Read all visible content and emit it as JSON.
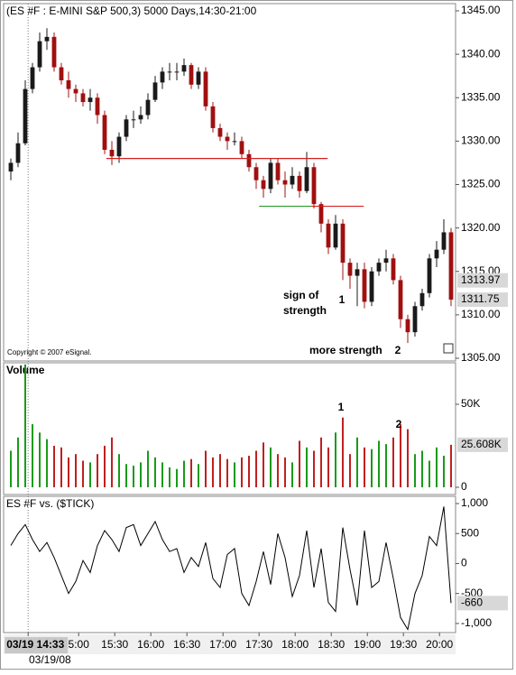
{
  "chart_data": [
    {
      "type": "candlestick",
      "title": "(ES #F : E-MINI S&P 500,3) 5000 Days,14:30-21:00",
      "copyright": "Copyright © 2007 eSignal.",
      "open": [
        1326.5,
        1327.5,
        1329.75,
        1336,
        1338.5,
        1341.5,
        1342,
        1338.5,
        1337,
        1336,
        1335.5,
        1334.5,
        1335,
        1333,
        1329,
        1328.25,
        1330.5,
        1332.5,
        1332.5,
        1333,
        1334.75,
        1336.75,
        1338,
        1338,
        1338,
        1338.75,
        1336.5,
        1338,
        1334,
        1331.5,
        1330.5,
        1330,
        1330,
        1328.5,
        1327,
        1325.5,
        1324.5,
        1327.5,
        1325.5,
        1325,
        1326,
        1324.25,
        1327,
        1322.75,
        1320.5,
        1317.75,
        1320.5,
        1316,
        1314.5,
        1315.25,
        1311.5,
        1315,
        1316,
        1316.5,
        1314,
        1309.5,
        1308,
        1311,
        1312.5,
        1316.5,
        1317.5,
        1319.5
      ],
      "high": [
        1328,
        1331,
        1337,
        1339,
        1342.5,
        1343,
        1342.5,
        1339,
        1338,
        1336.5,
        1336,
        1336,
        1335.5,
        1333.5,
        1330,
        1331,
        1333,
        1333.5,
        1334,
        1335.5,
        1337.5,
        1338.5,
        1339,
        1339,
        1339.5,
        1339,
        1338.5,
        1338.5,
        1334.5,
        1332,
        1331,
        1331,
        1330.5,
        1329,
        1327.5,
        1326,
        1328,
        1328,
        1326.5,
        1327,
        1326.5,
        1328.75,
        1327.5,
        1323,
        1321,
        1321.5,
        1321,
        1316.5,
        1316,
        1316,
        1315.5,
        1316.5,
        1317.5,
        1317,
        1314.5,
        1310,
        1311.5,
        1313,
        1317,
        1318.5,
        1321,
        1320
      ],
      "low": [
        1325.5,
        1327,
        1329.5,
        1335.5,
        1338,
        1340.5,
        1338,
        1336.5,
        1335,
        1334.5,
        1334,
        1333.5,
        1332,
        1328.5,
        1327.25,
        1327.5,
        1330,
        1331.5,
        1332,
        1332.5,
        1334.5,
        1336,
        1337,
        1337,
        1337.5,
        1336,
        1336,
        1333.5,
        1331,
        1330,
        1329,
        1329.5,
        1328,
        1326.5,
        1324.5,
        1323.5,
        1324,
        1325,
        1323.5,
        1324.5,
        1323.5,
        1324,
        1322.25,
        1319.5,
        1317,
        1317.5,
        1314,
        1313,
        1311,
        1310.75,
        1311,
        1314.5,
        1315,
        1313.5,
        1308.5,
        1306.75,
        1307.5,
        1310.5,
        1312,
        1315.5,
        1317,
        1311
      ],
      "close": [
        1327.5,
        1329.75,
        1336,
        1338.5,
        1341.5,
        1342,
        1338.5,
        1337,
        1336,
        1335.5,
        1334.5,
        1335,
        1333,
        1329,
        1328.25,
        1330.5,
        1332.5,
        1332.5,
        1333,
        1334.75,
        1336.75,
        1338,
        1338,
        1338,
        1338.75,
        1336.5,
        1338,
        1334,
        1331.5,
        1330.5,
        1330,
        1330,
        1328.5,
        1327,
        1325.5,
        1324.5,
        1327.5,
        1325.5,
        1325,
        1326,
        1324.25,
        1327,
        1322.75,
        1320.5,
        1317.75,
        1320.5,
        1316,
        1314.5,
        1315.25,
        1311.5,
        1315,
        1316,
        1316.5,
        1314,
        1309.5,
        1308,
        1311,
        1312.5,
        1316.5,
        1317.5,
        1319.5,
        1311.75
      ],
      "up_color": "#1a1a1a",
      "down_color": "#a01010",
      "xlim": [
        -0.5,
        61.5
      ],
      "ylim": [
        1304.69,
        1345.83
      ],
      "yticks": [
        {
          "value": 1305,
          "label": "1305.00"
        },
        {
          "value": 1310,
          "label": "1310.00"
        },
        {
          "value": 1315,
          "label": "1315.00"
        },
        {
          "value": 1320,
          "label": "1320.00"
        },
        {
          "value": 1325,
          "label": "1325.00"
        },
        {
          "value": 1330,
          "label": "1330.00"
        },
        {
          "value": 1335,
          "label": "1335.00"
        },
        {
          "value": 1340,
          "label": "1340.00"
        },
        {
          "value": 1345,
          "label": "1345.00"
        }
      ],
      "levels": [
        {
          "value": 1328,
          "from": 13.25,
          "to": 43.9,
          "color": "#d42020"
        },
        {
          "value": 1322.5,
          "from": 34.4,
          "to": 41.6,
          "color": "#2a9a2a"
        },
        {
          "value": 1322.5,
          "from": 41.6,
          "to": 48.9,
          "color": "#d42020"
        }
      ],
      "last_labels": [
        {
          "value": 1313.97,
          "label": "1313.97"
        },
        {
          "value": 1311.75,
          "label": "1311.75"
        }
      ],
      "annotations": [
        "sign of",
        "strength",
        "1",
        "more strength",
        "2"
      ]
    },
    {
      "type": "bar",
      "title": "Volume",
      "title_color": "#1a9a1a",
      "values": [
        22000,
        30000,
        74000,
        38000,
        33000,
        29000,
        25000,
        24000,
        18000,
        20000,
        16000,
        15000,
        20000,
        25000,
        30000,
        20000,
        14000,
        13000,
        15000,
        22000,
        18000,
        15000,
        12000,
        11000,
        16000,
        17000,
        14000,
        22000,
        18000,
        20000,
        17000,
        15000,
        18000,
        19000,
        22000,
        27000,
        24000,
        20000,
        18000,
        15000,
        28000,
        24000,
        22000,
        30000,
        24000,
        33000,
        42000,
        20000,
        30000,
        24000,
        23000,
        28000,
        26000,
        30000,
        38000,
        35000,
        20000,
        22000,
        16000,
        24000,
        19000,
        25608
      ],
      "up_color": "#1a9a1a",
      "down_color": "#c02020",
      "xlim": [
        -0.5,
        61.5
      ],
      "ylim": [
        -4350,
        75000
      ],
      "yticks": [
        0,
        {
          "value": 50000,
          "label": "50K"
        }
      ],
      "last_labels": [
        {
          "value": 25608,
          "label": "25.608K"
        }
      ],
      "annotations": [
        "1",
        "2"
      ]
    },
    {
      "type": "line",
      "title": "ES #F vs. ($TICK)",
      "values": [
        300,
        500,
        650,
        400,
        200,
        350,
        100,
        -200,
        -500,
        -300,
        50,
        -150,
        300,
        550,
        400,
        200,
        600,
        650,
        300,
        500,
        700,
        400,
        200,
        250,
        -150,
        100,
        -50,
        350,
        -250,
        -400,
        150,
        250,
        -500,
        -700,
        -300,
        200,
        -350,
        500,
        100,
        -550,
        -200,
        550,
        -400,
        250,
        -650,
        -800,
        600,
        -100,
        -700,
        550,
        -400,
        -300,
        350,
        -250,
        -900,
        -1100,
        -500,
        -200,
        450,
        300,
        950,
        -660
      ],
      "color": "#000000",
      "xlim": [
        -0.5,
        61.5
      ],
      "ylim": [
        -1152,
        1121
      ],
      "yticks": [
        {
          "value": 1000,
          "label": "1,000"
        },
        500,
        0,
        -500,
        {
          "value": -1000,
          "label": "-1,000"
        }
      ],
      "last_labels": [
        {
          "value": -660,
          "label": "-660"
        }
      ],
      "xticks": [
        {
          "value": 2.4,
          "label": "03/19 14:33"
        },
        {
          "value": 9.4,
          "label": "5:00"
        },
        {
          "value": 14.4,
          "label": "15:30"
        },
        {
          "value": 19.4,
          "label": "16:00"
        },
        {
          "value": 24.4,
          "label": "16:30"
        },
        {
          "value": 29.4,
          "label": "17:00"
        },
        {
          "value": 34.4,
          "label": "17:30"
        },
        {
          "value": 39.4,
          "label": "18:00"
        },
        {
          "value": 44.4,
          "label": "18:30"
        },
        {
          "value": 49.4,
          "label": "19:00"
        },
        {
          "value": 54.4,
          "label": "19:30"
        },
        {
          "value": 59.4,
          "label": "20:00"
        }
      ],
      "date_label": "03/19/08"
    }
  ]
}
